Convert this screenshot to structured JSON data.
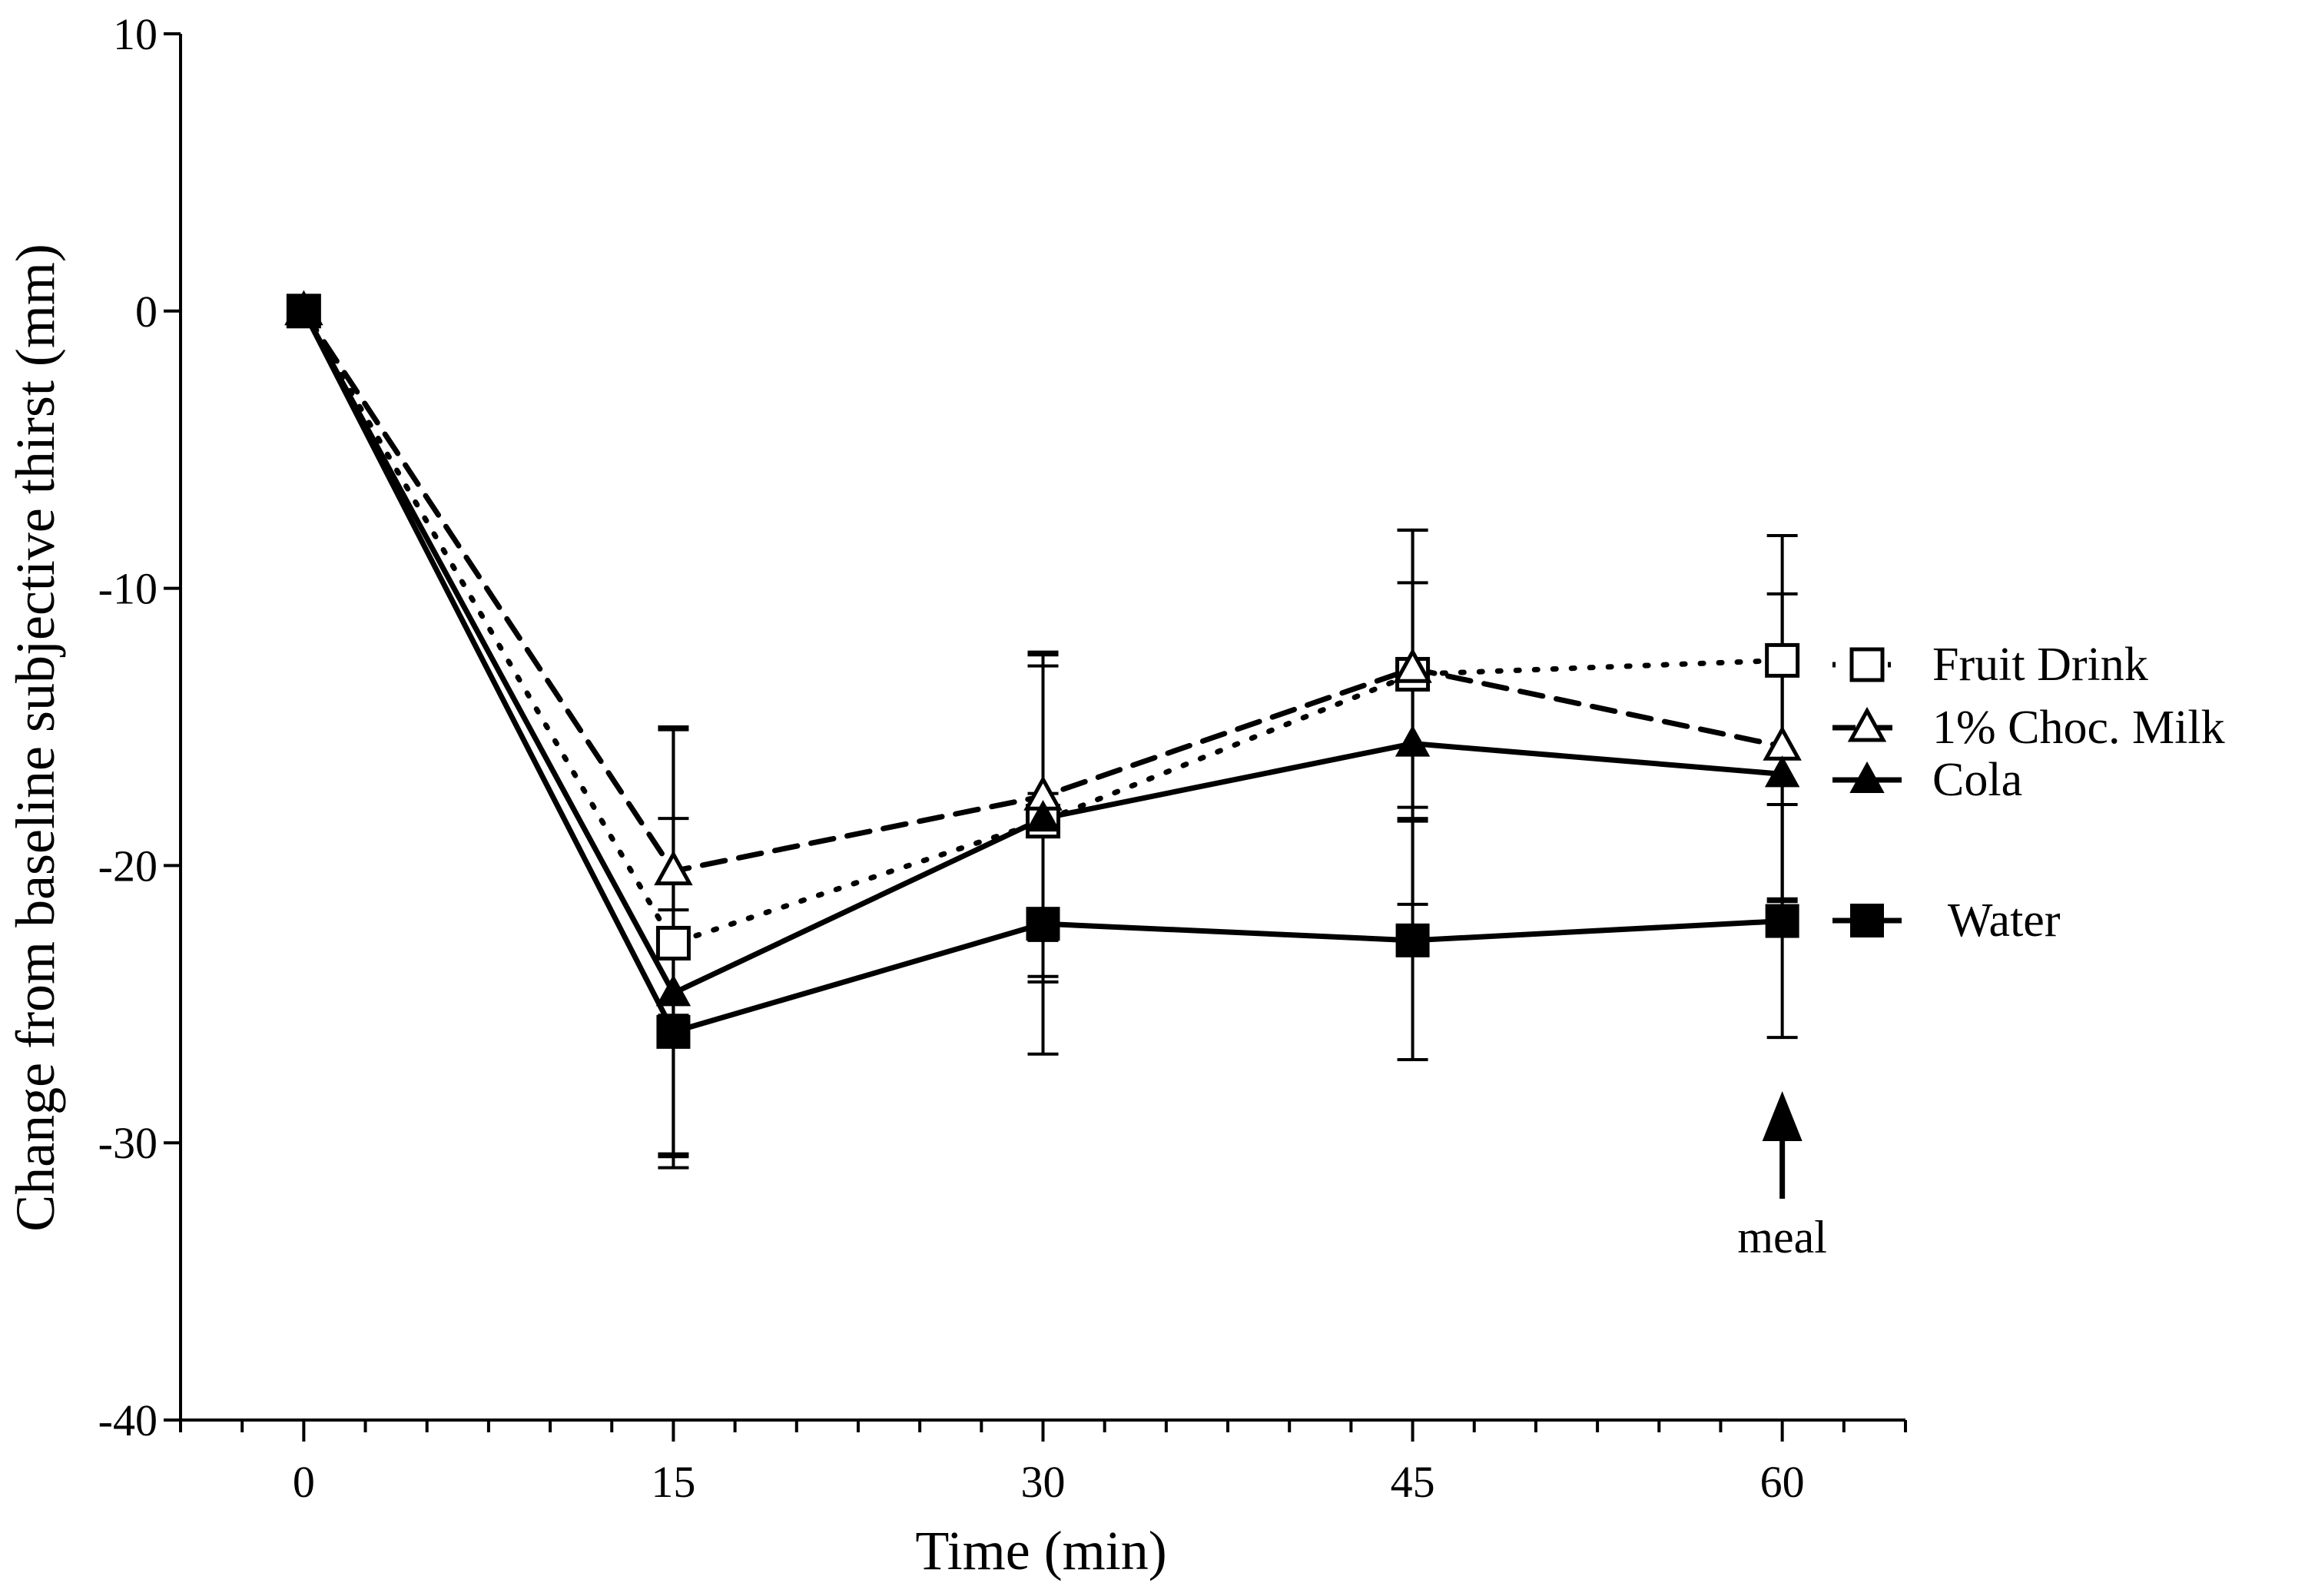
{
  "chart_data": {
    "type": "line",
    "title": "",
    "xlabel": "Time (min)",
    "ylabel": "Change from baseline subjective thirst  (mm)",
    "x": [
      0,
      15,
      30,
      45,
      60
    ],
    "x_ticks": [
      "0",
      "15",
      "30",
      "45",
      "60"
    ],
    "xlim": [
      -5,
      65
    ],
    "ylim": [
      -40,
      10
    ],
    "y_ticks": [
      "10",
      "0",
      "-10",
      "-20",
      "-30",
      "-40"
    ],
    "grid": false,
    "legend_position": "right",
    "series": [
      {
        "name": "Fruit Drink",
        "style": "dotted",
        "marker": "open-square",
        "values": [
          0,
          -22.8,
          -18.4,
          -13.1,
          -12.6
        ],
        "errors": [
          0,
          7.7,
          5.6,
          5.2,
          4.5
        ]
      },
      {
        "name": "1% Choc. Milk",
        "style": "dashed",
        "marker": "open-triangle",
        "values": [
          0,
          -20.2,
          -17.5,
          -12.9,
          -15.7
        ],
        "errors": [
          0,
          5.2,
          5.2,
          5.0,
          5.5
        ]
      },
      {
        "name": "Cola",
        "style": "solid",
        "marker": "filled-triangle",
        "values": [
          0,
          -24.6,
          -18.3,
          -15.6,
          -16.7
        ],
        "errors": [
          0,
          6.3,
          5.9,
          5.8,
          4.6
        ]
      },
      {
        "name": "Water",
        "style": "solid",
        "marker": "filled-square",
        "values": [
          0,
          -26.0,
          -22.1,
          -22.7,
          -22.0
        ],
        "errors": [
          0,
          4.4,
          4.7,
          4.3,
          4.2
        ]
      }
    ],
    "annotation": {
      "text": "meal",
      "x": 60
    }
  }
}
